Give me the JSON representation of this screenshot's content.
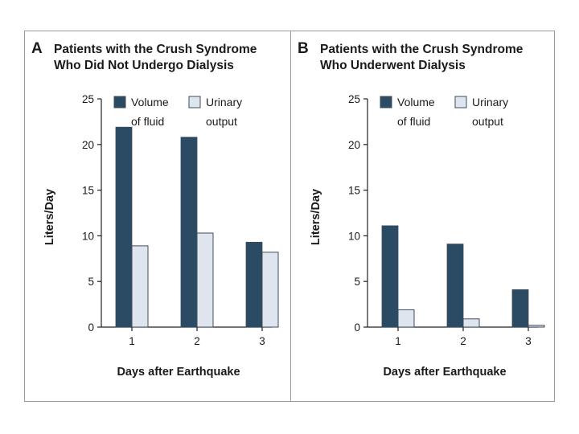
{
  "colors": {
    "fluid": "#2b4a63",
    "urine": "#dfe5ee",
    "outline": "#3e4d5a",
    "axis": "#222222"
  },
  "chart_data": [
    {
      "type": "bar",
      "letter": "A",
      "title_lines": [
        "Patients with the Crush Syndrome",
        "Who Did Not Undergo Dialysis"
      ],
      "ylabel": "Liters/Day",
      "xlabel": "Days after Earthquake",
      "ylim": [
        0,
        25
      ],
      "yticks": [
        0,
        5,
        10,
        15,
        20,
        25
      ],
      "categories": [
        "1",
        "2",
        "3"
      ],
      "series": [
        {
          "name_lines": [
            "Volume",
            "of fluid"
          ],
          "values": [
            21.9,
            20.8,
            9.3
          ]
        },
        {
          "name_lines": [
            "Urinary",
            "output"
          ],
          "values": [
            8.9,
            10.3,
            8.2
          ]
        }
      ]
    },
    {
      "type": "bar",
      "letter": "B",
      "title_lines": [
        "Patients with the Crush Syndrome",
        "Who Underwent Dialysis"
      ],
      "ylabel": "Liters/Day",
      "xlabel": "Days after Earthquake",
      "ylim": [
        0,
        25
      ],
      "yticks": [
        0,
        5,
        10,
        15,
        20,
        25
      ],
      "categories": [
        "1",
        "2",
        "3"
      ],
      "series": [
        {
          "name_lines": [
            "Volume",
            "of fluid"
          ],
          "values": [
            11.1,
            9.1,
            4.1
          ]
        },
        {
          "name_lines": [
            "Urinary",
            "output"
          ],
          "values": [
            1.9,
            0.9,
            0.2
          ]
        }
      ]
    }
  ]
}
